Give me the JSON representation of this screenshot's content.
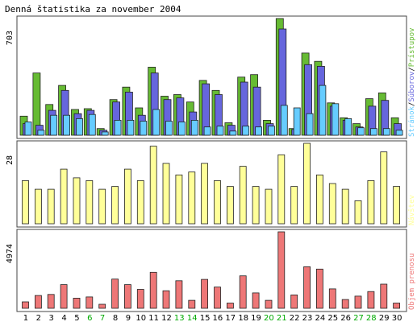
{
  "chart_data": {
    "type": "bar",
    "title": "Denná štatistika za november 2004",
    "categories": [
      "1",
      "2",
      "3",
      "4",
      "5",
      "6",
      "7",
      "8",
      "9",
      "10",
      "11",
      "12",
      "13",
      "14",
      "15",
      "16",
      "17",
      "18",
      "19",
      "20",
      "21",
      "22",
      "23",
      "24",
      "25",
      "26",
      "27",
      "28",
      "29",
      "30"
    ],
    "weekend_days": [
      "6",
      "7",
      "13",
      "14",
      "20",
      "21",
      "27",
      "28"
    ],
    "panels": [
      {
        "id": "traffic",
        "ymax_label": "703",
        "ymax": 703,
        "legend": [
          "Stránok",
          "Súborov",
          "Prístupov"
        ],
        "series": [
          {
            "name": "Prístupov",
            "color": "#66bb33",
            "values": [
              115,
              375,
              185,
              300,
              155,
              160,
              40,
              215,
              290,
              165,
              410,
              235,
              245,
              200,
              330,
              270,
              75,
              350,
              365,
              90,
              703,
              40,
              495,
              445,
              195,
              105,
              70,
              220,
              255,
              105
            ]
          },
          {
            "name": "Súborov",
            "color": "#6666dd",
            "values": [
              70,
              60,
              150,
              270,
              130,
              150,
              30,
              200,
              260,
              120,
              375,
              215,
              225,
              140,
              310,
              245,
              60,
              320,
              290,
              70,
              640,
              35,
              425,
              415,
              175,
              90,
              50,
              175,
              210,
              70
            ]
          },
          {
            "name": "Stránok",
            "color": "#66ccff",
            "values": [
              80,
              30,
              120,
              120,
              100,
              125,
              20,
              90,
              90,
              85,
              155,
              85,
              80,
              90,
              50,
              55,
              25,
              55,
              50,
              55,
              180,
              165,
              130,
              300,
              190,
              100,
              45,
              40,
              40,
              30
            ]
          }
        ]
      },
      {
        "id": "visits",
        "ymax_label": "28",
        "ymax": 28,
        "legend": [
          "Návštev"
        ],
        "series": [
          {
            "name": "Návštev",
            "color": "#ffff99",
            "values": [
              15,
              12,
              12,
              19,
              16,
              15,
              12,
              13,
              19,
              15,
              27,
              21,
              17,
              18,
              21,
              15,
              13,
              20,
              13,
              12,
              24,
              13,
              28,
              17,
              14,
              12,
              8,
              15,
              25,
              13
            ]
          }
        ]
      },
      {
        "id": "transfer",
        "ymax_label": "4974",
        "ymax": 4974,
        "legend": [
          "Objem prenosu"
        ],
        "series": [
          {
            "name": "Objem prenosu",
            "color": "#ee7777",
            "values": [
              420,
              830,
              900,
              1540,
              660,
              740,
              260,
              1900,
              1540,
              1230,
              2340,
              1140,
              1790,
              520,
              1880,
              1380,
              340,
              2110,
              1000,
              520,
              4974,
              870,
              2700,
              2550,
              1260,
              570,
              790,
              1090,
              1570,
              340
            ]
          }
        ]
      }
    ]
  },
  "colors": {
    "frame": "#444444",
    "text": "#000000",
    "weekend": "#00aa00"
  }
}
